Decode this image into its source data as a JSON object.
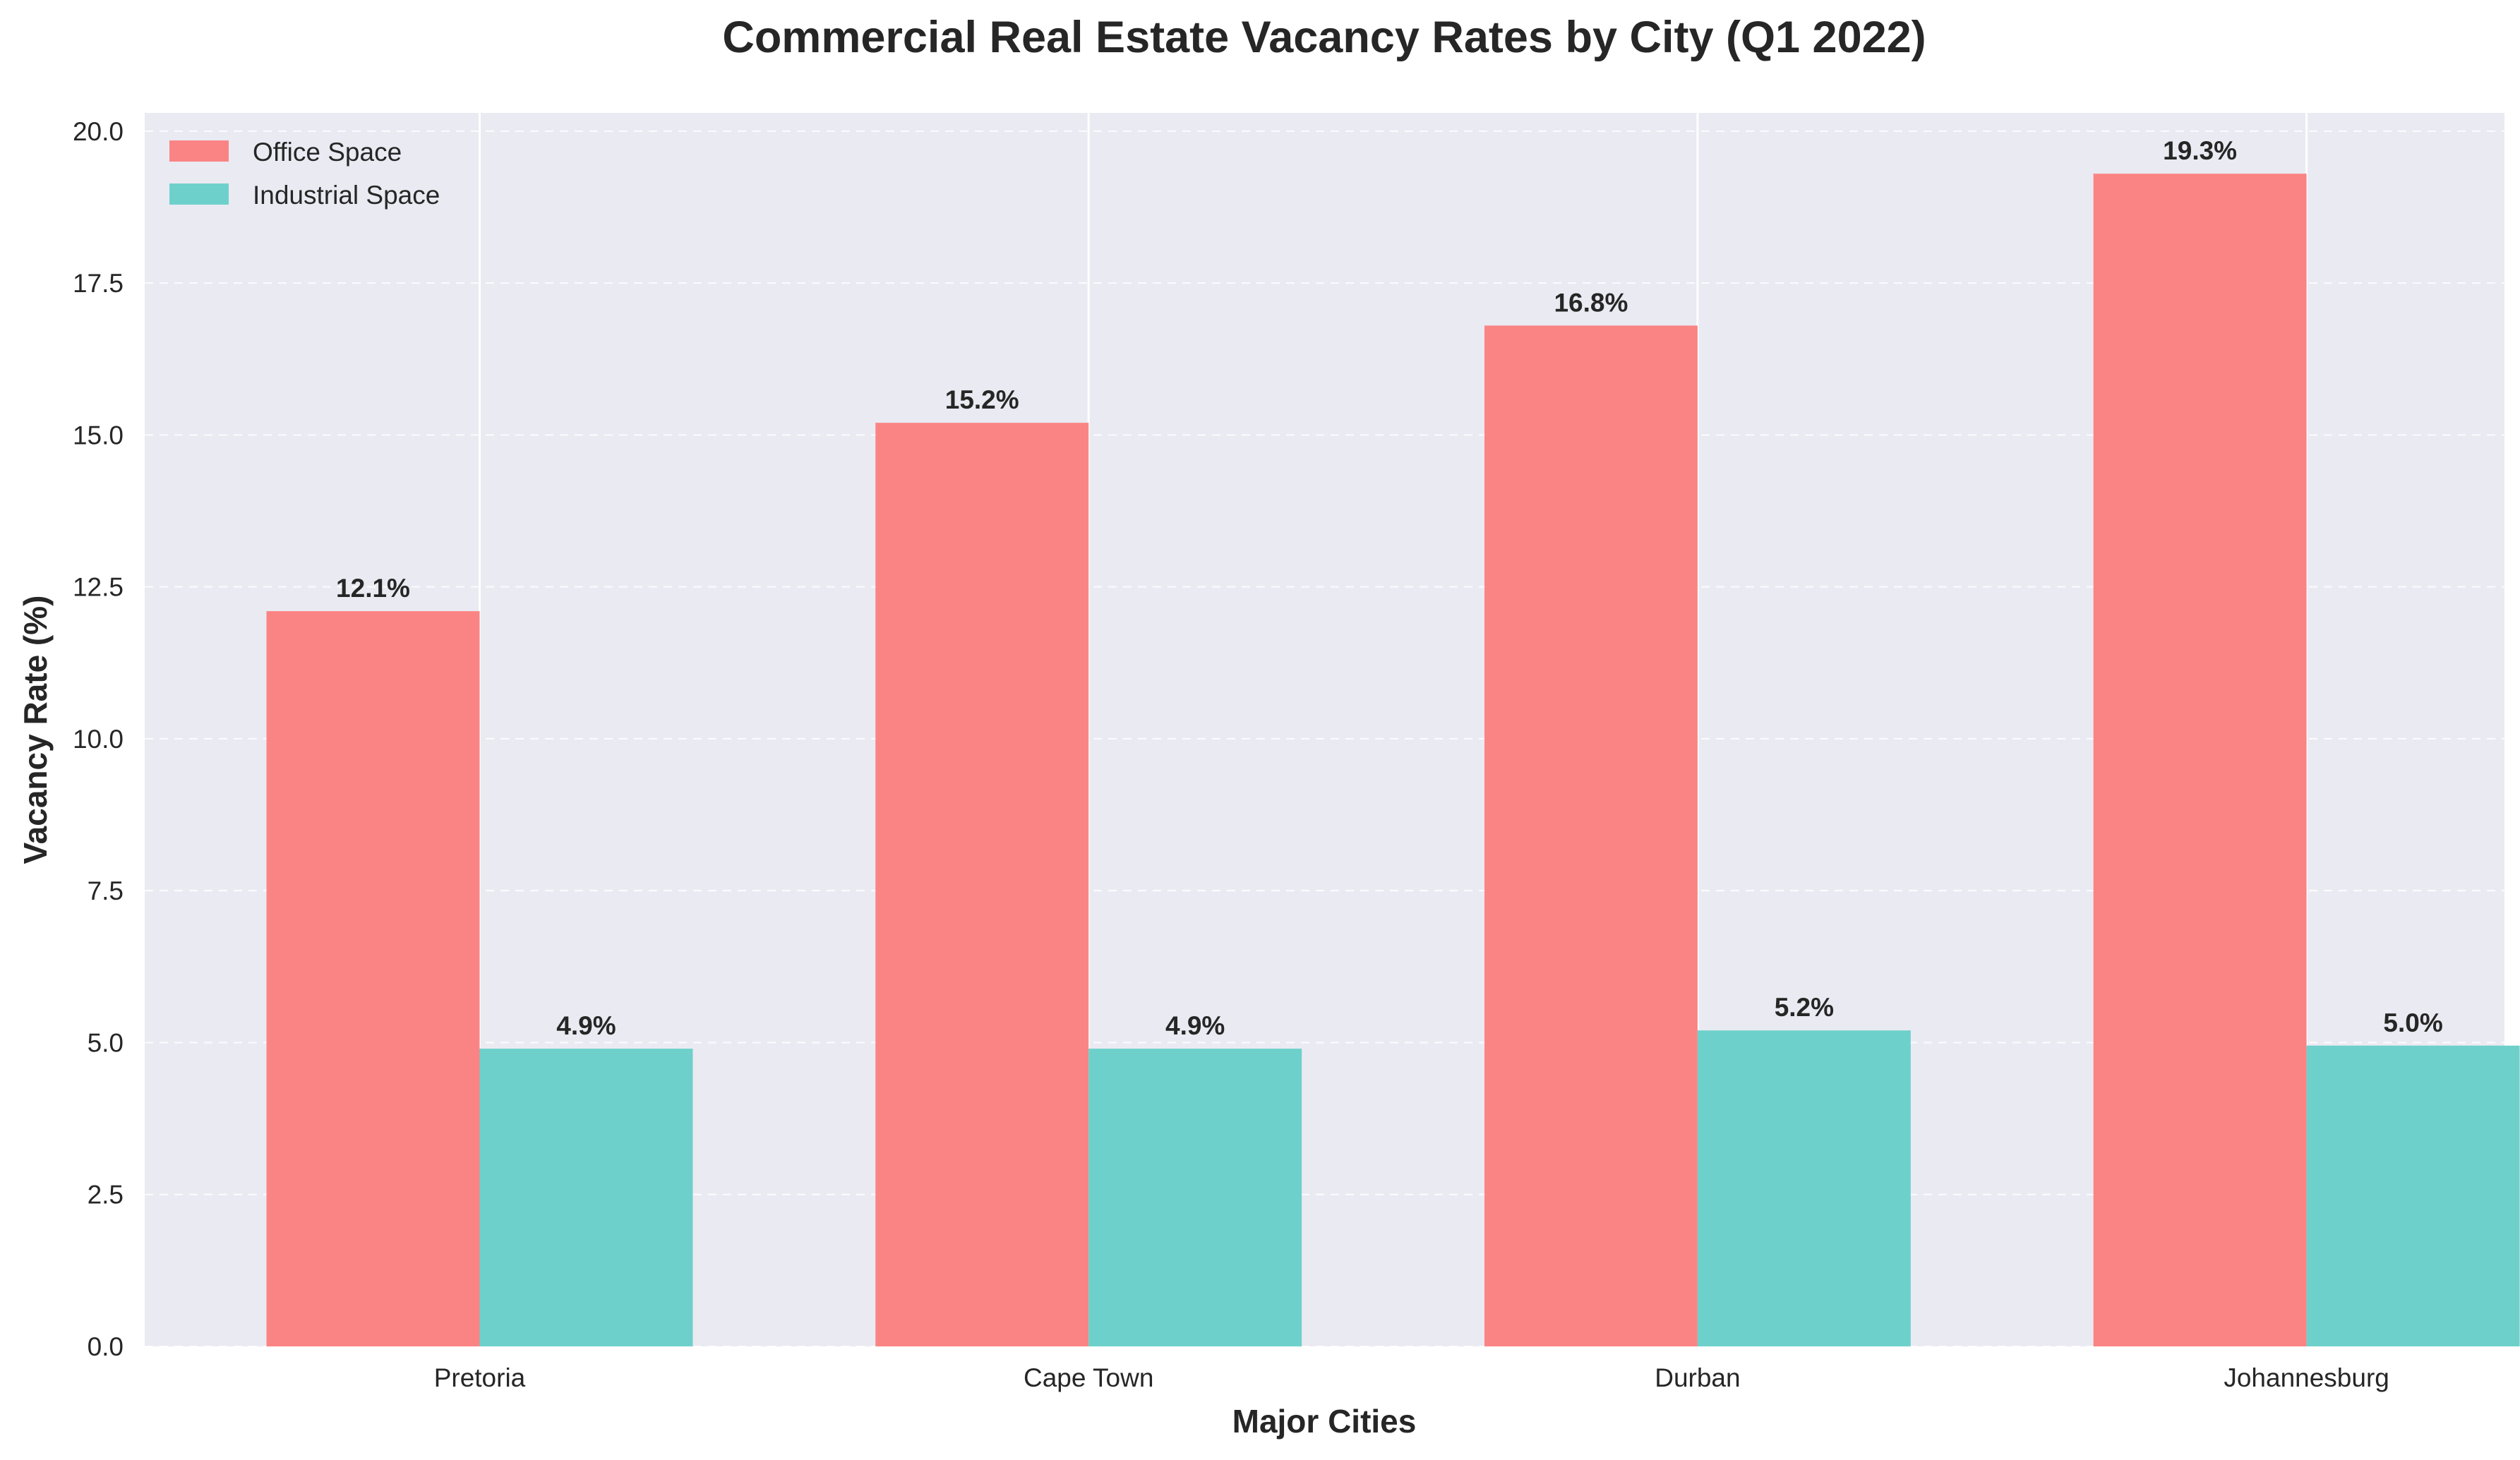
{
  "chart_data": {
    "type": "bar",
    "title": "Commercial Real Estate Vacancy Rates by City (Q1 2022)",
    "xlabel": "Major Cities",
    "ylabel": "Vacancy Rate (%)",
    "categories": [
      "Pretoria",
      "Cape Town",
      "Durban",
      "Johannesburg"
    ],
    "series": [
      {
        "name": "Office Space",
        "color": "#FA8484",
        "values": [
          12.1,
          15.2,
          16.8,
          19.3
        ],
        "labels": [
          "12.1%",
          "15.2%",
          "16.8%",
          "19.3%"
        ]
      },
      {
        "name": "Industrial Space",
        "color": "#6ED0CB",
        "values": [
          4.9,
          4.9,
          5.2,
          4.95
        ],
        "labels": [
          "4.9%",
          "4.9%",
          "5.2%",
          "5.0%"
        ]
      }
    ],
    "ylim": [
      0,
      20.3
    ],
    "yticks": [
      "0.0",
      "2.5",
      "5.0",
      "7.5",
      "10.0",
      "12.5",
      "15.0",
      "17.5",
      "20.0"
    ],
    "grid": true,
    "legend_position": "top-left",
    "background_color": "#EAEAF2"
  }
}
